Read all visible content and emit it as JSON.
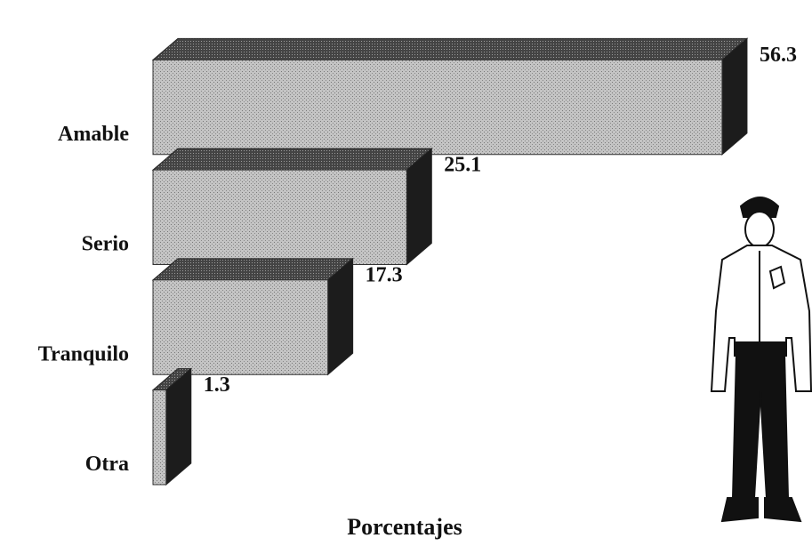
{
  "chart_data": {
    "type": "bar3d",
    "orientation": "horizontal",
    "xlabel": "Porcentajes",
    "categories": [
      "Amable",
      "Serio",
      "Tranquilo",
      "Otra"
    ],
    "values": [
      56.3,
      25.1,
      17.3,
      1.3
    ],
    "color": "#b8b8b8",
    "xlim": [
      0,
      60
    ]
  }
}
